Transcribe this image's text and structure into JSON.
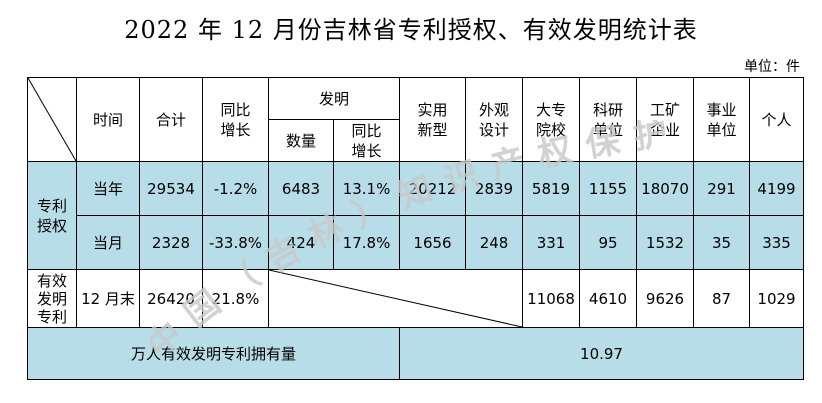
{
  "title": "2022 年 12 月份吉林省专利授权、有效发明统计表",
  "unit": "单位：件",
  "headers": {
    "time": "时间",
    "total": "合计",
    "yoy": "同比增长",
    "invention": "发明",
    "inv_count": "数量",
    "inv_yoy": "同比增长",
    "utility": "实用新型",
    "design": "外观设计",
    "college": "大专院校",
    "research": "科研单位",
    "industry": "工矿企业",
    "institution": "事业单位",
    "individual": "个人"
  },
  "grant_group_label": "专利授权",
  "rows": [
    {
      "time": "当年",
      "total": "29534",
      "yoy": "-1.2%",
      "inv_count": "6483",
      "inv_yoy": "13.1%",
      "utility": "20212",
      "design": "2839",
      "college": "5819",
      "research": "1155",
      "industry": "18070",
      "institution": "291",
      "individual": "4199"
    },
    {
      "time": "当月",
      "total": "2328",
      "yoy": "-33.8%",
      "inv_count": "424",
      "inv_yoy": "17.8%",
      "utility": "1656",
      "design": "248",
      "college": "331",
      "research": "95",
      "industry": "1532",
      "institution": "35",
      "individual": "335"
    }
  ],
  "valid_row": {
    "label": "有效发明专利",
    "time": "12 月末",
    "total": "26420",
    "yoy": "21.8%",
    "college": "11068",
    "research": "4610",
    "industry": "9626",
    "institution": "87",
    "individual": "1029"
  },
  "footer": {
    "label": "万人有效发明专利拥有量",
    "value": "10.97"
  },
  "watermark": "中国（吉林）知识产权保护中心",
  "colors": {
    "highlight": "#b7dde8",
    "watermark": "#cfcfcf"
  }
}
